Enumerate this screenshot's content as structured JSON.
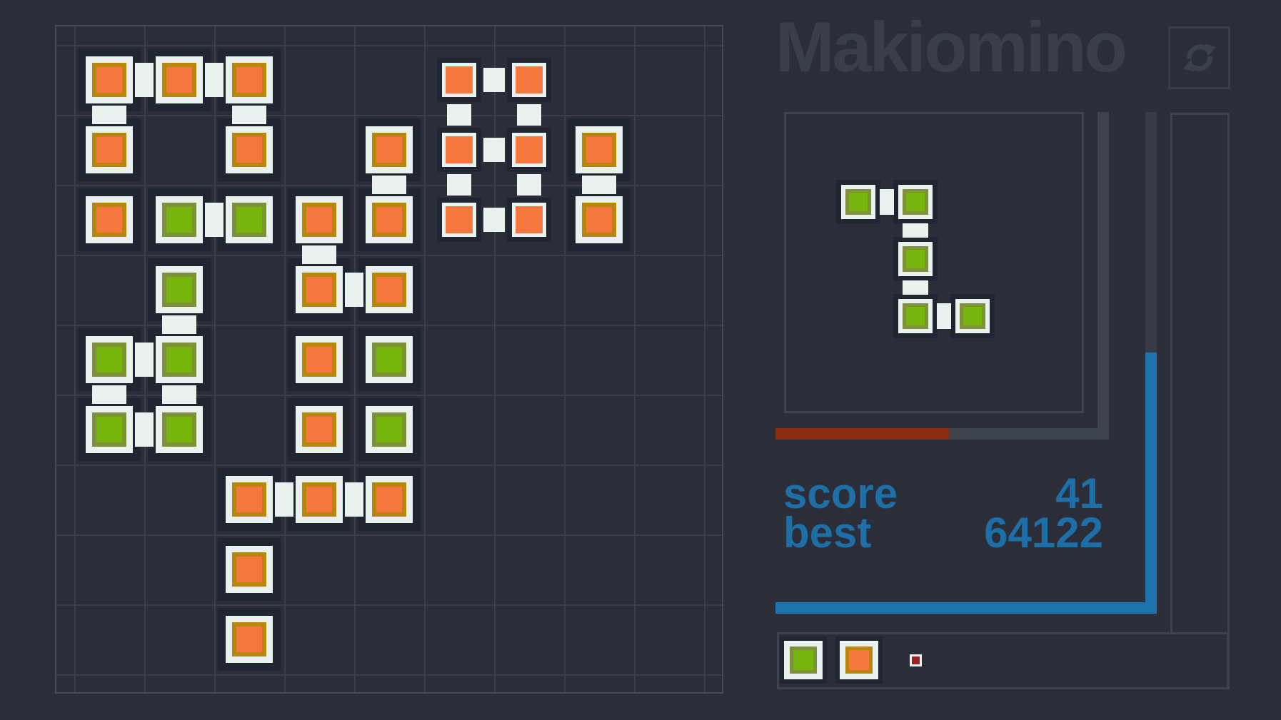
{
  "app": {
    "title": "Makiomino"
  },
  "header": {
    "refresh_icon": "refresh-icon"
  },
  "colors": {
    "background": "#2b2e38",
    "grid_line": "#3a3e48",
    "board_border": "#474b55",
    "tile_base": "#212532",
    "tile_frame": "#e9f2ee",
    "orange": "#f5793f",
    "orange_border": "#b8860d",
    "green": "#76b40e",
    "green_border": "#7e9138",
    "red_bar": "#8a2c11",
    "blue_bar": "#1c73ae",
    "track_gray": "#3d424d",
    "score_text": "#1e6fa7",
    "title_text": "#393e4a",
    "marker_red": "#992226"
  },
  "board": {
    "cols": 8,
    "rows": 9,
    "tiles": [
      {
        "c": 0,
        "r": 0,
        "color": "orange",
        "size": "large"
      },
      {
        "c": 1,
        "r": 0,
        "color": "orange",
        "size": "large"
      },
      {
        "c": 2,
        "r": 0,
        "color": "orange",
        "size": "large"
      },
      {
        "c": 5,
        "r": 0,
        "color": "orange",
        "size": "small"
      },
      {
        "c": 6,
        "r": 0,
        "color": "orange",
        "size": "small"
      },
      {
        "c": 0,
        "r": 1,
        "color": "orange",
        "size": "large"
      },
      {
        "c": 2,
        "r": 1,
        "color": "orange",
        "size": "large"
      },
      {
        "c": 4,
        "r": 1,
        "color": "orange",
        "size": "large"
      },
      {
        "c": 5,
        "r": 1,
        "color": "orange",
        "size": "small"
      },
      {
        "c": 6,
        "r": 1,
        "color": "orange",
        "size": "small"
      },
      {
        "c": 7,
        "r": 1,
        "color": "orange",
        "size": "large"
      },
      {
        "c": 0,
        "r": 2,
        "color": "orange",
        "size": "large"
      },
      {
        "c": 1,
        "r": 2,
        "color": "green",
        "size": "large"
      },
      {
        "c": 2,
        "r": 2,
        "color": "green",
        "size": "large"
      },
      {
        "c": 3,
        "r": 2,
        "color": "orange",
        "size": "large"
      },
      {
        "c": 4,
        "r": 2,
        "color": "orange",
        "size": "large"
      },
      {
        "c": 5,
        "r": 2,
        "color": "orange",
        "size": "small"
      },
      {
        "c": 6,
        "r": 2,
        "color": "orange",
        "size": "small"
      },
      {
        "c": 7,
        "r": 2,
        "color": "orange",
        "size": "large"
      },
      {
        "c": 1,
        "r": 3,
        "color": "green",
        "size": "large"
      },
      {
        "c": 3,
        "r": 3,
        "color": "orange",
        "size": "large"
      },
      {
        "c": 4,
        "r": 3,
        "color": "orange",
        "size": "large"
      },
      {
        "c": 0,
        "r": 4,
        "color": "green",
        "size": "large"
      },
      {
        "c": 1,
        "r": 4,
        "color": "green",
        "size": "large"
      },
      {
        "c": 3,
        "r": 4,
        "color": "orange",
        "size": "large"
      },
      {
        "c": 4,
        "r": 4,
        "color": "green",
        "size": "large"
      },
      {
        "c": 0,
        "r": 5,
        "color": "green",
        "size": "large"
      },
      {
        "c": 1,
        "r": 5,
        "color": "green",
        "size": "large"
      },
      {
        "c": 3,
        "r": 5,
        "color": "orange",
        "size": "large"
      },
      {
        "c": 4,
        "r": 5,
        "color": "green",
        "size": "large"
      },
      {
        "c": 2,
        "r": 6,
        "color": "orange",
        "size": "large"
      },
      {
        "c": 3,
        "r": 6,
        "color": "orange",
        "size": "large"
      },
      {
        "c": 4,
        "r": 6,
        "color": "orange",
        "size": "large"
      },
      {
        "c": 2,
        "r": 7,
        "color": "orange",
        "size": "large"
      },
      {
        "c": 2,
        "r": 8,
        "color": "orange",
        "size": "large"
      }
    ],
    "connectors": [
      {
        "c": 0,
        "r": 0,
        "dir": "h",
        "size": "large"
      },
      {
        "c": 1,
        "r": 0,
        "dir": "h",
        "size": "large"
      },
      {
        "c": 5,
        "r": 0,
        "dir": "h",
        "size": "small"
      },
      {
        "c": 5,
        "r": 1,
        "dir": "h",
        "size": "small"
      },
      {
        "c": 1,
        "r": 2,
        "dir": "h",
        "size": "large"
      },
      {
        "c": 5,
        "r": 2,
        "dir": "h",
        "size": "small"
      },
      {
        "c": 3,
        "r": 3,
        "dir": "h",
        "size": "large"
      },
      {
        "c": 0,
        "r": 4,
        "dir": "h",
        "size": "large"
      },
      {
        "c": 0,
        "r": 5,
        "dir": "h",
        "size": "large"
      },
      {
        "c": 2,
        "r": 6,
        "dir": "h",
        "size": "large"
      },
      {
        "c": 3,
        "r": 6,
        "dir": "h",
        "size": "large"
      },
      {
        "c": 0,
        "r": 0,
        "dir": "v",
        "size": "large"
      },
      {
        "c": 2,
        "r": 0,
        "dir": "v",
        "size": "large"
      },
      {
        "c": 5,
        "r": 0,
        "dir": "v",
        "size": "small"
      },
      {
        "c": 6,
        "r": 0,
        "dir": "v",
        "size": "small"
      },
      {
        "c": 4,
        "r": 1,
        "dir": "v",
        "size": "large"
      },
      {
        "c": 5,
        "r": 1,
        "dir": "v",
        "size": "small"
      },
      {
        "c": 6,
        "r": 1,
        "dir": "v",
        "size": "small"
      },
      {
        "c": 7,
        "r": 1,
        "dir": "v",
        "size": "large"
      },
      {
        "c": 3,
        "r": 2,
        "dir": "v",
        "size": "large"
      },
      {
        "c": 1,
        "r": 3,
        "dir": "v",
        "size": "large"
      },
      {
        "c": 0,
        "r": 4,
        "dir": "v",
        "size": "large"
      },
      {
        "c": 1,
        "r": 4,
        "dir": "v",
        "size": "large"
      }
    ]
  },
  "preview": {
    "piece_color": "green",
    "tiles": [
      {
        "c": 0,
        "r": 0
      },
      {
        "c": 1,
        "r": 0
      },
      {
        "c": 1,
        "r": 1
      },
      {
        "c": 1,
        "r": 2
      },
      {
        "c": 2,
        "r": 2
      }
    ],
    "connectors": [
      {
        "c": 0,
        "r": 0,
        "dir": "h"
      },
      {
        "c": 1,
        "r": 0,
        "dir": "v"
      },
      {
        "c": 1,
        "r": 1,
        "dir": "v"
      },
      {
        "c": 1,
        "r": 2,
        "dir": "h"
      }
    ]
  },
  "progress": {
    "bottom_fill_ratio": 0.52,
    "side_fill_ratio": 0.52
  },
  "score": {
    "score_label": "score",
    "score_value": "41",
    "best_label": "best",
    "best_value": "64122"
  },
  "palette": {
    "items": [
      {
        "color": "green"
      },
      {
        "color": "orange"
      }
    ],
    "marker_color": "#992226"
  }
}
